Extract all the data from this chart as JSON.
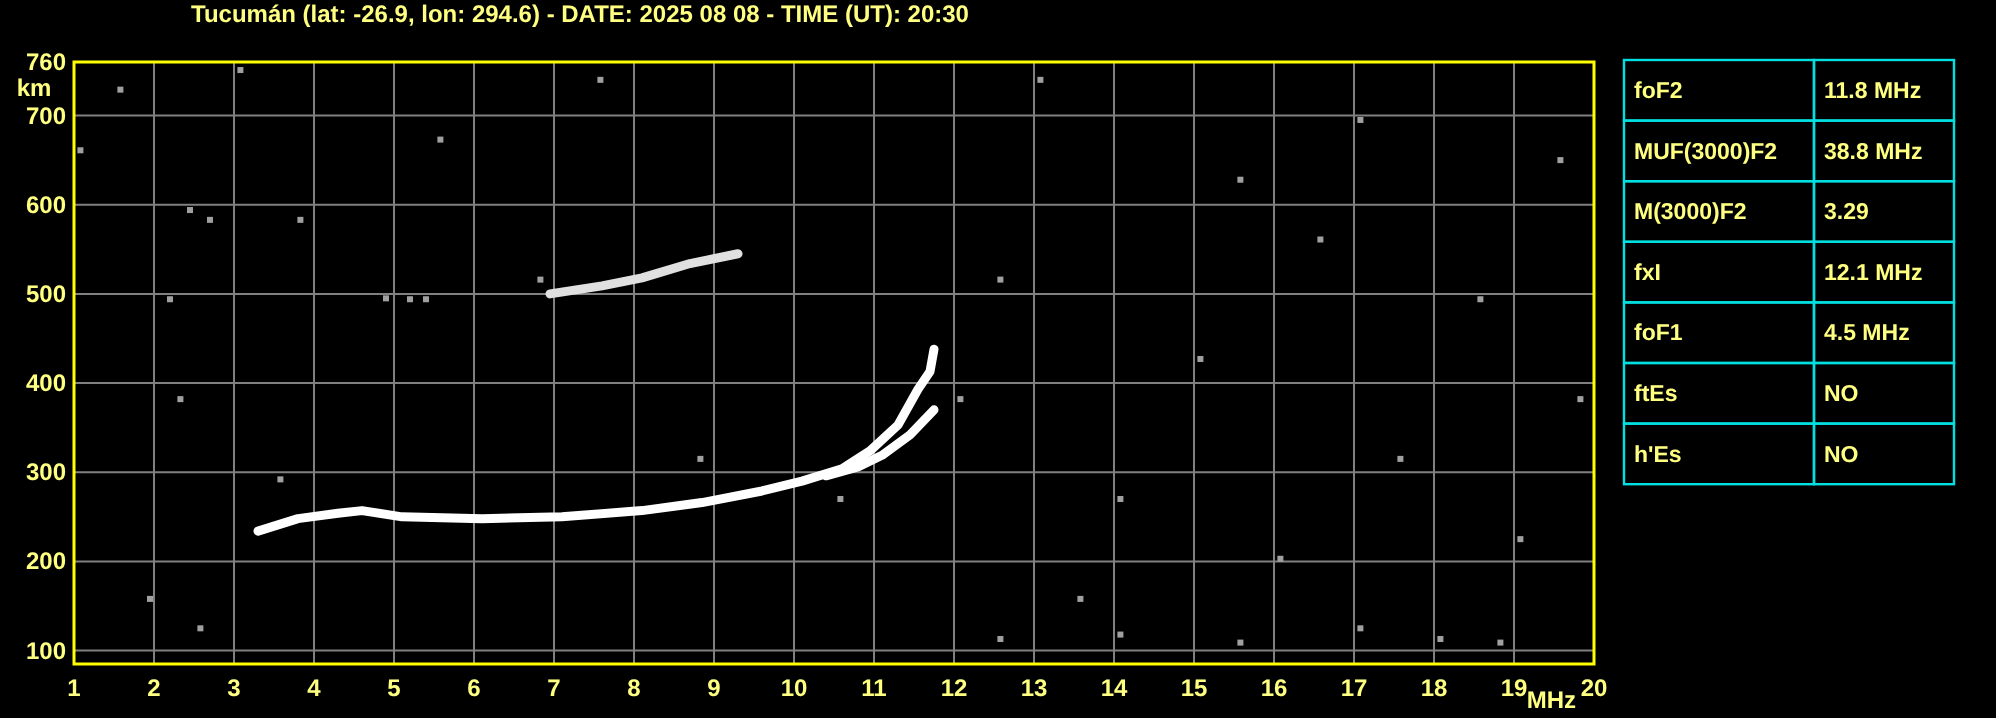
{
  "chart_data": [
    {
      "type": "line",
      "title": "Tucumán (lat: -26.9, lon: 294.6) - DATE: 2025 08 08 - TIME (UT): 20:30",
      "xlabel": "MHz",
      "ylabel": "km",
      "xlim": [
        1,
        20
      ],
      "ylim": [
        85,
        760
      ],
      "xticks": [
        1,
        2,
        3,
        4,
        5,
        6,
        7,
        8,
        9,
        10,
        11,
        12,
        13,
        14,
        15,
        16,
        17,
        18,
        19,
        20
      ],
      "yticks": [
        100,
        200,
        300,
        400,
        500,
        600,
        700,
        760
      ],
      "grid": true,
      "marker": "none",
      "line_style": "solid",
      "series": [
        {
          "color": "#ffffff",
          "x": [
            3.3,
            3.8,
            4.3,
            4.6,
            5.1,
            6.1,
            7.1,
            8.1,
            8.85,
            9.6,
            10.1,
            10.6,
            10.95,
            11.3,
            11.55,
            11.7,
            11.75
          ],
          "values": [
            234,
            248,
            254,
            257,
            250,
            248,
            250,
            257,
            266,
            279,
            290,
            304,
            324,
            353,
            393,
            413,
            438
          ]
        },
        {
          "color": "#ffffff",
          "x": [
            10.4,
            10.8,
            11.1,
            11.45,
            11.75
          ],
          "values": [
            296,
            306,
            319,
            342,
            370
          ]
        },
        {
          "color": "#e0e0e0",
          "x": [
            6.95,
            7.6,
            8.1,
            8.7,
            9.3
          ],
          "values": [
            500,
            509,
            518,
            534,
            545
          ]
        },
        {
          "type": "scatter",
          "marker": "square",
          "color": "#a0a0a0",
          "x": [
            1.58,
            1.08,
            2.2,
            2.33,
            1.95,
            2.45,
            2.7,
            2.58,
            3.08,
            3.58,
            3.83,
            5.58,
            6.83,
            8.83,
            12.08,
            12.58,
            13.08,
            13.58,
            14.08,
            15.08,
            15.58,
            16.08,
            16.58,
            17.08,
            17.58,
            18.08,
            18.58,
            19.08,
            19.58,
            19.83,
            12.58,
            14.08,
            15.58,
            17.08,
            18.83,
            10.58,
            7.58,
            5.2,
            4.9,
            5.4
          ],
          "values": [
            729,
            661,
            494,
            382,
            158,
            594,
            583,
            125,
            751,
            292,
            583,
            673,
            516,
            315,
            382,
            516,
            740,
            158,
            270,
            427,
            628,
            203,
            561,
            695,
            315,
            113,
            494,
            225,
            650,
            382,
            113,
            118,
            109,
            125,
            109,
            270,
            740,
            494,
            495,
            494
          ]
        }
      ]
    },
    {
      "type": "other",
      "cells": [
        [
          "foF2",
          "11.8 MHz"
        ],
        [
          "MUF(3000)F2",
          "38.8 MHz"
        ],
        [
          "M(3000)F2",
          "3.29"
        ],
        [
          "fxI",
          "12.1 MHz"
        ],
        [
          "foF1",
          "4.5 MHz"
        ],
        [
          "ftEs",
          "NO"
        ],
        [
          "h'Es",
          "NO"
        ]
      ]
    }
  ]
}
